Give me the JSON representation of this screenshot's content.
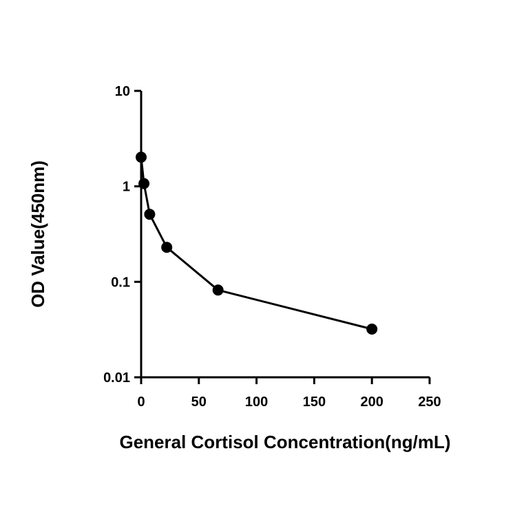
{
  "chart_data": {
    "type": "line",
    "title": "",
    "xlabel": "General Cortisol Concentration(ng/mL)",
    "ylabel": "OD Value(450nm)",
    "x_scale": "linear",
    "y_scale": "log",
    "xlim": [
      0,
      250
    ],
    "ylim": [
      0.01,
      10
    ],
    "x_ticks": [
      0,
      50,
      100,
      150,
      200,
      250
    ],
    "x_tick_labels": [
      "0",
      "50",
      "100",
      "150",
      "200",
      "250"
    ],
    "y_ticks": [
      0.01,
      0.1,
      1,
      10
    ],
    "y_tick_labels": [
      "0.01",
      "0.1",
      "1",
      "10"
    ],
    "grid": false,
    "legend": false,
    "series": [
      {
        "color": "#000000",
        "marker": "circle",
        "x": [
          0,
          2.47,
          7.41,
          22.22,
          66.67,
          200
        ],
        "y": [
          2.02,
          1.07,
          0.51,
          0.23,
          0.082,
          0.032
        ]
      }
    ]
  }
}
